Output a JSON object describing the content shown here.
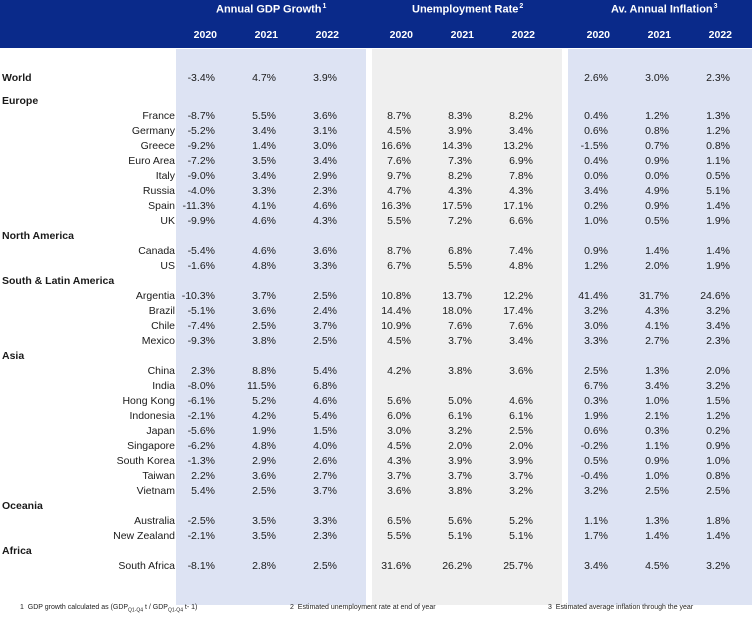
{
  "header": {
    "gdp": {
      "title": "Annual GDP Growth",
      "sup": "1"
    },
    "unemp": {
      "title": "Unemployment Rate",
      "sup": "2"
    },
    "infl": {
      "title": "Av. Annual Inflation",
      "sup": "3"
    },
    "years": [
      "2020",
      "2021",
      "2022"
    ]
  },
  "rows": [
    {
      "type": "region",
      "label": "World",
      "vals": [
        "-3.4%",
        "4.7%",
        "3.9%",
        "",
        "",
        "",
        "2.6%",
        "3.0%",
        "2.3%"
      ]
    },
    {
      "type": "region",
      "label": "Europe",
      "vals": [
        "",
        "",
        "",
        "",
        "",
        "",
        "",
        "",
        ""
      ]
    },
    {
      "type": "country",
      "label": "France",
      "vals": [
        "-8.7%",
        "5.5%",
        "3.6%",
        "8.7%",
        "8.3%",
        "8.2%",
        "0.4%",
        "1.2%",
        "1.3%"
      ]
    },
    {
      "type": "country",
      "label": "Germany",
      "vals": [
        "-5.2%",
        "3.4%",
        "3.1%",
        "4.5%",
        "3.9%",
        "3.4%",
        "0.6%",
        "0.8%",
        "1.2%"
      ]
    },
    {
      "type": "country",
      "label": "Greece",
      "vals": [
        "-9.2%",
        "1.4%",
        "3.0%",
        "16.6%",
        "14.3%",
        "13.2%",
        "-1.5%",
        "0.7%",
        "0.8%"
      ]
    },
    {
      "type": "country",
      "label": "Euro Area",
      "vals": [
        "-7.2%",
        "3.5%",
        "3.4%",
        "7.6%",
        "7.3%",
        "6.9%",
        "0.4%",
        "0.9%",
        "1.1%"
      ]
    },
    {
      "type": "country",
      "label": "Italy",
      "vals": [
        "-9.0%",
        "3.4%",
        "2.9%",
        "9.7%",
        "8.2%",
        "7.8%",
        "0.0%",
        "0.0%",
        "0.5%"
      ]
    },
    {
      "type": "country",
      "label": "Russia",
      "vals": [
        "-4.0%",
        "3.3%",
        "2.3%",
        "4.7%",
        "4.3%",
        "4.3%",
        "3.4%",
        "4.9%",
        "5.1%"
      ]
    },
    {
      "type": "country",
      "label": "Spain",
      "vals": [
        "-11.3%",
        "4.1%",
        "4.6%",
        "16.3%",
        "17.5%",
        "17.1%",
        "0.2%",
        "0.9%",
        "1.4%"
      ]
    },
    {
      "type": "country",
      "label": "UK",
      "vals": [
        "-9.9%",
        "4.6%",
        "4.3%",
        "5.5%",
        "7.2%",
        "6.6%",
        "1.0%",
        "0.5%",
        "1.9%"
      ]
    },
    {
      "type": "region",
      "label": "North America",
      "vals": [
        "",
        "",
        "",
        "",
        "",
        "",
        "",
        "",
        ""
      ]
    },
    {
      "type": "country",
      "label": "Canada",
      "vals": [
        "-5.4%",
        "4.6%",
        "3.6%",
        "8.7%",
        "6.8%",
        "7.4%",
        "0.9%",
        "1.4%",
        "1.4%"
      ]
    },
    {
      "type": "country",
      "label": "US",
      "vals": [
        "-1.6%",
        "4.8%",
        "3.3%",
        "6.7%",
        "5.5%",
        "4.8%",
        "1.2%",
        "2.0%",
        "1.9%"
      ]
    },
    {
      "type": "region",
      "label": "South & Latin America",
      "vals": [
        "",
        "",
        "",
        "",
        "",
        "",
        "",
        "",
        ""
      ]
    },
    {
      "type": "country",
      "label": "Argentia",
      "vals": [
        "-10.3%",
        "3.7%",
        "2.5%",
        "10.8%",
        "13.7%",
        "12.2%",
        "41.4%",
        "31.7%",
        "24.6%"
      ]
    },
    {
      "type": "country",
      "label": "Brazil",
      "vals": [
        "-5.1%",
        "3.6%",
        "2.4%",
        "14.4%",
        "18.0%",
        "17.4%",
        "3.2%",
        "4.3%",
        "3.2%"
      ]
    },
    {
      "type": "country",
      "label": "Chile",
      "vals": [
        "-7.4%",
        "2.5%",
        "3.7%",
        "10.9%",
        "7.6%",
        "7.6%",
        "3.0%",
        "4.1%",
        "3.4%"
      ]
    },
    {
      "type": "country",
      "label": "Mexico",
      "vals": [
        "-9.3%",
        "3.8%",
        "2.5%",
        "4.5%",
        "3.7%",
        "3.4%",
        "3.3%",
        "2.7%",
        "2.3%"
      ]
    },
    {
      "type": "region",
      "label": "Asia",
      "vals": [
        "",
        "",
        "",
        "",
        "",
        "",
        "",
        "",
        ""
      ]
    },
    {
      "type": "country",
      "label": "China",
      "vals": [
        "2.3%",
        "8.8%",
        "5.4%",
        "4.2%",
        "3.8%",
        "3.6%",
        "2.5%",
        "1.3%",
        "2.0%"
      ]
    },
    {
      "type": "country",
      "label": "India",
      "vals": [
        "-8.0%",
        "11.5%",
        "6.8%",
        "",
        "",
        "",
        "6.7%",
        "3.4%",
        "3.2%"
      ]
    },
    {
      "type": "country",
      "label": "Hong Kong",
      "vals": [
        "-6.1%",
        "5.2%",
        "4.6%",
        "5.6%",
        "5.0%",
        "4.6%",
        "0.3%",
        "1.0%",
        "1.5%"
      ]
    },
    {
      "type": "country",
      "label": "Indonesia",
      "vals": [
        "-2.1%",
        "4.2%",
        "5.4%",
        "6.0%",
        "6.1%",
        "6.1%",
        "1.9%",
        "2.1%",
        "1.2%"
      ]
    },
    {
      "type": "country",
      "label": "Japan",
      "vals": [
        "-5.6%",
        "1.9%",
        "1.5%",
        "3.0%",
        "3.2%",
        "2.5%",
        "0.6%",
        "0.3%",
        "0.2%"
      ]
    },
    {
      "type": "country",
      "label": "Singapore",
      "vals": [
        "-6.2%",
        "4.8%",
        "4.0%",
        "4.5%",
        "2.0%",
        "2.0%",
        "-0.2%",
        "1.1%",
        "0.9%"
      ]
    },
    {
      "type": "country",
      "label": "South Korea",
      "vals": [
        "-1.3%",
        "2.9%",
        "2.6%",
        "4.3%",
        "3.9%",
        "3.9%",
        "0.5%",
        "0.9%",
        "1.0%"
      ]
    },
    {
      "type": "country",
      "label": "Taiwan",
      "vals": [
        "2.2%",
        "3.6%",
        "2.7%",
        "3.7%",
        "3.7%",
        "3.7%",
        "-0.4%",
        "1.0%",
        "0.8%"
      ]
    },
    {
      "type": "country",
      "label": "Vietnam",
      "vals": [
        "5.4%",
        "2.5%",
        "3.7%",
        "3.6%",
        "3.8%",
        "3.2%",
        "3.2%",
        "2.5%",
        "2.5%"
      ]
    },
    {
      "type": "region",
      "label": "Oceania",
      "vals": [
        "",
        "",
        "",
        "",
        "",
        "",
        "",
        "",
        ""
      ]
    },
    {
      "type": "country",
      "label": "Australia",
      "vals": [
        "-2.5%",
        "3.5%",
        "3.3%",
        "6.5%",
        "5.6%",
        "5.2%",
        "1.1%",
        "1.3%",
        "1.8%"
      ]
    },
    {
      "type": "country",
      "label": "New Zealand",
      "vals": [
        "-2.1%",
        "3.5%",
        "2.3%",
        "5.5%",
        "5.1%",
        "5.1%",
        "1.7%",
        "1.4%",
        "1.4%"
      ]
    },
    {
      "type": "region",
      "label": "Africa",
      "vals": [
        "",
        "",
        "",
        "",
        "",
        "",
        "",
        "",
        ""
      ]
    },
    {
      "type": "country",
      "label": "South Africa",
      "vals": [
        "-8.1%",
        "2.8%",
        "2.5%",
        "31.6%",
        "26.2%",
        "25.7%",
        "3.4%",
        "4.5%",
        "3.2%"
      ]
    }
  ],
  "footnotes": {
    "f1": {
      "num": "1",
      "text": "GDP growth calculated as (GDP",
      "sub1": "Q1-Q4",
      "mid": " t / GDP",
      "sub2": "Q1-Q4",
      "end": " t- 1)"
    },
    "f2": {
      "num": "2",
      "text": "Estimated unemployment rate at end of year"
    },
    "f3": {
      "num": "3",
      "text": "Estimated average inflation through the year"
    }
  }
}
